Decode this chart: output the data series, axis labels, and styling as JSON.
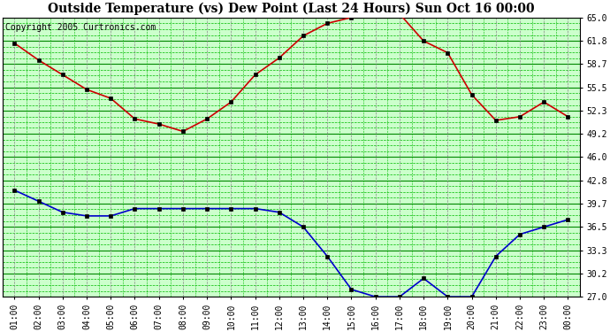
{
  "title": "Outside Temperature (vs) Dew Point (Last 24 Hours) Sun Oct 16 00:00",
  "copyright": "Copyright 2005 Curtronics.com",
  "x_labels": [
    "01:00",
    "02:00",
    "03:00",
    "04:00",
    "05:00",
    "06:00",
    "07:00",
    "08:00",
    "09:00",
    "10:00",
    "11:00",
    "12:00",
    "13:00",
    "14:00",
    "15:00",
    "16:00",
    "17:00",
    "18:00",
    "19:00",
    "20:00",
    "21:00",
    "22:00",
    "23:00",
    "00:00"
  ],
  "temp_data": [
    61.5,
    59.2,
    57.2,
    55.2,
    54.0,
    51.2,
    50.5,
    49.5,
    51.2,
    53.5,
    57.2,
    59.5,
    62.5,
    64.2,
    65.0,
    65.5,
    65.5,
    61.8,
    60.2,
    54.5,
    51.0,
    51.5,
    53.5,
    51.5
  ],
  "dew_data": [
    41.5,
    40.0,
    38.5,
    38.0,
    38.0,
    39.0,
    39.0,
    39.0,
    39.0,
    39.0,
    39.0,
    38.5,
    36.5,
    32.5,
    28.0,
    27.0,
    27.0,
    29.5,
    27.0,
    27.0,
    32.5,
    35.5,
    36.5,
    37.5
  ],
  "y_ticks": [
    27.0,
    30.2,
    33.3,
    36.5,
    39.7,
    42.8,
    46.0,
    49.2,
    52.3,
    55.5,
    58.7,
    61.8,
    65.0
  ],
  "ylim": [
    27.0,
    65.0
  ],
  "bg_color": "#ffffff",
  "plot_bg_color": "#ccffcc",
  "grid_major_color": "#008800",
  "grid_minor_color": "#00bb00",
  "grid_vert_color": "#888888",
  "temp_color": "#cc0000",
  "dew_color": "#0000cc",
  "marker_color": "#000000",
  "title_fontsize": 10,
  "copyright_fontsize": 7,
  "tick_fontsize": 7,
  "marker_size": 3.0,
  "line_width": 1.2,
  "minor_per_major": 3,
  "figwidth": 6.9,
  "figheight": 3.75,
  "dpi": 100
}
